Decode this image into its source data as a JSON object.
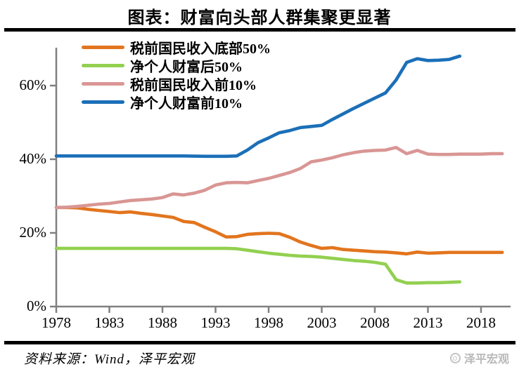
{
  "header": {
    "title": "图表：财富向头部人群集聚更显著"
  },
  "footer": {
    "source": "资料来源：Wind，泽平宏观",
    "watermark": "泽平宏观"
  },
  "colors": {
    "axis": "#808080",
    "divider": "#000000",
    "watermark": "#b9b9b9"
  },
  "chart_data": {
    "type": "line",
    "title": "图表：财富向头部人群集聚更显著",
    "xlabel": "",
    "ylabel": "",
    "grid": false,
    "legend_position": "top-left",
    "x_axis": {
      "tick_values": [
        1978,
        1983,
        1988,
        1993,
        1998,
        2003,
        2008,
        2013,
        2018
      ],
      "tick_labels": [
        "1978",
        "1983",
        "1988",
        "1993",
        "1998",
        "2003",
        "2008",
        "2013",
        "2018"
      ],
      "range": [
        1978,
        2020.7
      ]
    },
    "y_axis": {
      "tick_values": [
        0,
        20,
        40,
        60
      ],
      "tick_labels": [
        "0%",
        "20%",
        "40%",
        "60%"
      ],
      "range": [
        0,
        69.5
      ],
      "unit": "%"
    },
    "series": [
      {
        "name": "税前国民收入底部50%",
        "color": "#E2751E",
        "points": [
          [
            1978,
            26.9
          ],
          [
            1979,
            26.9
          ],
          [
            1980,
            26.8
          ],
          [
            1981,
            26.4
          ],
          [
            1982,
            26.1
          ],
          [
            1983,
            25.8
          ],
          [
            1984,
            25.5
          ],
          [
            1985,
            25.7
          ],
          [
            1986,
            25.3
          ],
          [
            1987,
            25.0
          ],
          [
            1988,
            24.6
          ],
          [
            1989,
            24.2
          ],
          [
            1990,
            23.1
          ],
          [
            1991,
            22.8
          ],
          [
            1992,
            21.5
          ],
          [
            1993,
            20.3
          ],
          [
            1994,
            18.9
          ],
          [
            1995,
            19.0
          ],
          [
            1996,
            19.6
          ],
          [
            1997,
            19.8
          ],
          [
            1998,
            19.9
          ],
          [
            1999,
            19.8
          ],
          [
            2000,
            18.8
          ],
          [
            2001,
            17.5
          ],
          [
            2002,
            16.6
          ],
          [
            2003,
            15.8
          ],
          [
            2004,
            16.0
          ],
          [
            2005,
            15.5
          ],
          [
            2006,
            15.3
          ],
          [
            2007,
            15.1
          ],
          [
            2008,
            14.9
          ],
          [
            2009,
            14.8
          ],
          [
            2010,
            14.6
          ],
          [
            2011,
            14.3
          ],
          [
            2012,
            14.8
          ],
          [
            2013,
            14.5
          ],
          [
            2014,
            14.6
          ],
          [
            2015,
            14.7
          ],
          [
            2016,
            14.7
          ],
          [
            2017,
            14.7
          ],
          [
            2018,
            14.7
          ],
          [
            2019,
            14.7
          ],
          [
            2020,
            14.7
          ]
        ]
      },
      {
        "name": "净个人财富后50%",
        "color": "#92D050",
        "points": [
          [
            1978,
            15.8
          ],
          [
            1980,
            15.8
          ],
          [
            1982,
            15.8
          ],
          [
            1984,
            15.8
          ],
          [
            1986,
            15.8
          ],
          [
            1988,
            15.8
          ],
          [
            1990,
            15.8
          ],
          [
            1992,
            15.8
          ],
          [
            1994,
            15.8
          ],
          [
            1995,
            15.7
          ],
          [
            1996,
            15.3
          ],
          [
            1997,
            14.9
          ],
          [
            1998,
            14.5
          ],
          [
            1999,
            14.2
          ],
          [
            2000,
            13.9
          ],
          [
            2001,
            13.7
          ],
          [
            2002,
            13.6
          ],
          [
            2003,
            13.4
          ],
          [
            2004,
            13.1
          ],
          [
            2005,
            12.8
          ],
          [
            2006,
            12.5
          ],
          [
            2007,
            12.3
          ],
          [
            2008,
            12.0
          ],
          [
            2009,
            11.5
          ],
          [
            2010,
            7.3
          ],
          [
            2011,
            6.4
          ],
          [
            2012,
            6.4
          ],
          [
            2013,
            6.5
          ],
          [
            2014,
            6.5
          ],
          [
            2015,
            6.6
          ],
          [
            2016,
            6.7
          ]
        ]
      },
      {
        "name": "税前国民收入前10%",
        "color": "#D99694",
        "points": [
          [
            1978,
            26.9
          ],
          [
            1979,
            27.0
          ],
          [
            1980,
            27.2
          ],
          [
            1981,
            27.5
          ],
          [
            1982,
            27.8
          ],
          [
            1983,
            28.0
          ],
          [
            1984,
            28.4
          ],
          [
            1985,
            28.8
          ],
          [
            1986,
            29.0
          ],
          [
            1987,
            29.2
          ],
          [
            1988,
            29.6
          ],
          [
            1989,
            30.6
          ],
          [
            1990,
            30.3
          ],
          [
            1991,
            30.8
          ],
          [
            1992,
            31.6
          ],
          [
            1993,
            33.0
          ],
          [
            1994,
            33.6
          ],
          [
            1995,
            33.7
          ],
          [
            1996,
            33.6
          ],
          [
            1997,
            34.2
          ],
          [
            1998,
            34.8
          ],
          [
            1999,
            35.6
          ],
          [
            2000,
            36.4
          ],
          [
            2001,
            37.5
          ],
          [
            2002,
            39.3
          ],
          [
            2003,
            39.8
          ],
          [
            2004,
            40.4
          ],
          [
            2005,
            41.2
          ],
          [
            2006,
            41.8
          ],
          [
            2007,
            42.2
          ],
          [
            2008,
            42.4
          ],
          [
            2009,
            42.5
          ],
          [
            2010,
            43.2
          ],
          [
            2011,
            41.5
          ],
          [
            2012,
            42.4
          ],
          [
            2013,
            41.4
          ],
          [
            2014,
            41.3
          ],
          [
            2015,
            41.3
          ],
          [
            2016,
            41.4
          ],
          [
            2017,
            41.4
          ],
          [
            2018,
            41.4
          ],
          [
            2019,
            41.5
          ],
          [
            2020,
            41.5
          ]
        ]
      },
      {
        "name": "净个人财富前10%",
        "color": "#1B6FB8",
        "points": [
          [
            1978,
            40.9
          ],
          [
            1980,
            40.9
          ],
          [
            1982,
            40.9
          ],
          [
            1984,
            40.9
          ],
          [
            1986,
            40.9
          ],
          [
            1988,
            40.9
          ],
          [
            1990,
            40.9
          ],
          [
            1992,
            40.8
          ],
          [
            1994,
            40.8
          ],
          [
            1995,
            40.9
          ],
          [
            1996,
            42.5
          ],
          [
            1997,
            44.5
          ],
          [
            1998,
            45.8
          ],
          [
            1999,
            47.2
          ],
          [
            2000,
            47.8
          ],
          [
            2001,
            48.6
          ],
          [
            2002,
            48.9
          ],
          [
            2003,
            49.2
          ],
          [
            2004,
            50.8
          ],
          [
            2005,
            52.3
          ],
          [
            2006,
            53.8
          ],
          [
            2007,
            55.2
          ],
          [
            2008,
            56.6
          ],
          [
            2009,
            58.0
          ],
          [
            2010,
            61.5
          ],
          [
            2011,
            66.3
          ],
          [
            2012,
            67.3
          ],
          [
            2013,
            66.8
          ],
          [
            2014,
            66.9
          ],
          [
            2015,
            67.1
          ],
          [
            2016,
            68.0
          ]
        ]
      }
    ]
  }
}
